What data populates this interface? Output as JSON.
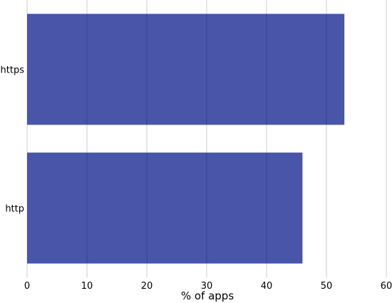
{
  "chart_data": {
    "type": "bar",
    "orientation": "horizontal",
    "title": "",
    "categories": [
      "https",
      "http"
    ],
    "values": [
      53,
      46
    ],
    "xlabel": "% of apps",
    "ylabel": "",
    "xlim": [
      0,
      60
    ],
    "xticks": [
      0,
      10,
      20,
      30,
      40,
      50,
      60
    ],
    "xtick_labels": [
      "0",
      "10",
      "20",
      "30",
      "40",
      "50",
      "60"
    ],
    "grid": "vertical",
    "bar_color": "#4855a8",
    "grid_color": "#cccccc"
  }
}
